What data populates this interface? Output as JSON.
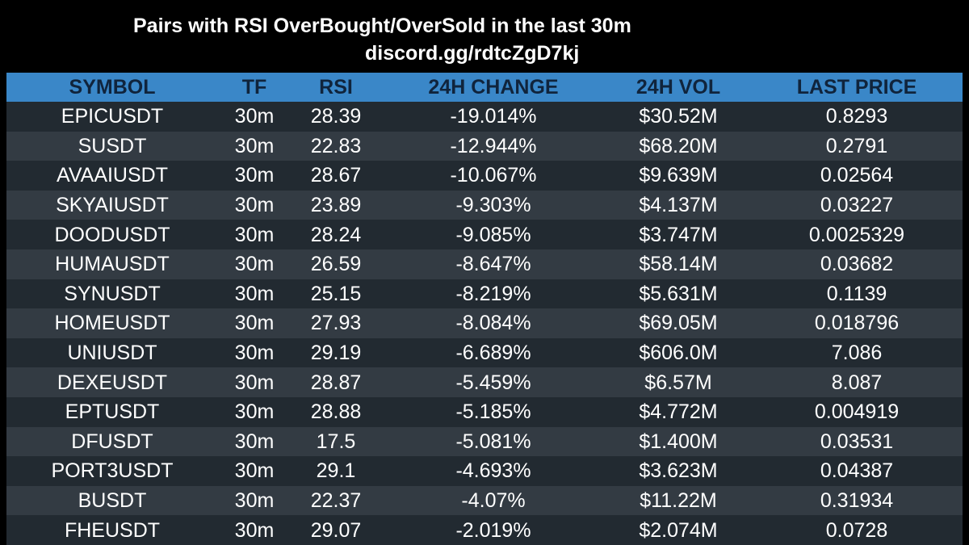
{
  "header": {
    "title": "Pairs with RSI OverBought/OverSold in the last 30m",
    "subtitle": "discord.gg/rdtcZgD7kj"
  },
  "table": {
    "columns": [
      "SYMBOL",
      "TF",
      "RSI",
      "24H CHANGE",
      "24H VOL",
      "LAST PRICE"
    ],
    "rows": [
      [
        "EPICUSDT",
        "30m",
        "28.39",
        "-19.014%",
        "$30.52M",
        "0.8293"
      ],
      [
        "SUSDT",
        "30m",
        "22.83",
        "-12.944%",
        "$68.20M",
        "0.2791"
      ],
      [
        "AVAAIUSDT",
        "30m",
        "28.67",
        "-10.067%",
        "$9.639M",
        "0.02564"
      ],
      [
        "SKYAIUSDT",
        "30m",
        "23.89",
        "-9.303%",
        "$4.137M",
        "0.03227"
      ],
      [
        "DOODUSDT",
        "30m",
        "28.24",
        "-9.085%",
        "$3.747M",
        "0.0025329"
      ],
      [
        "HUMAUSDT",
        "30m",
        "26.59",
        "-8.647%",
        "$58.14M",
        "0.03682"
      ],
      [
        "SYNUSDT",
        "30m",
        "25.15",
        "-8.219%",
        "$5.631M",
        "0.1139"
      ],
      [
        "HOMEUSDT",
        "30m",
        "27.93",
        "-8.084%",
        "$69.05M",
        "0.018796"
      ],
      [
        "UNIUSDT",
        "30m",
        "29.19",
        "-6.689%",
        "$606.0M",
        "7.086"
      ],
      [
        "DEXEUSDT",
        "30m",
        "28.87",
        "-5.459%",
        "$6.57M",
        "8.087"
      ],
      [
        "EPTUSDT",
        "30m",
        "28.88",
        "-5.185%",
        "$4.772M",
        "0.004919"
      ],
      [
        "DFUSDT",
        "30m",
        "17.5",
        "-5.081%",
        "$1.400M",
        "0.03531"
      ],
      [
        "PORT3USDT",
        "30m",
        "29.1",
        "-4.693%",
        "$3.623M",
        "0.04387"
      ],
      [
        "BUSDT",
        "30m",
        "22.37",
        "-4.07%",
        "$11.22M",
        "0.31934"
      ],
      [
        "FHEUSDT",
        "30m",
        "29.07",
        "-2.019%",
        "$2.074M",
        "0.0728"
      ]
    ]
  },
  "colors": {
    "background": "#000000",
    "header_bg": "#3a87c8",
    "header_text": "#10243c",
    "row_odd": "#222a31",
    "row_even": "#333b43",
    "text": "#ffffff"
  }
}
